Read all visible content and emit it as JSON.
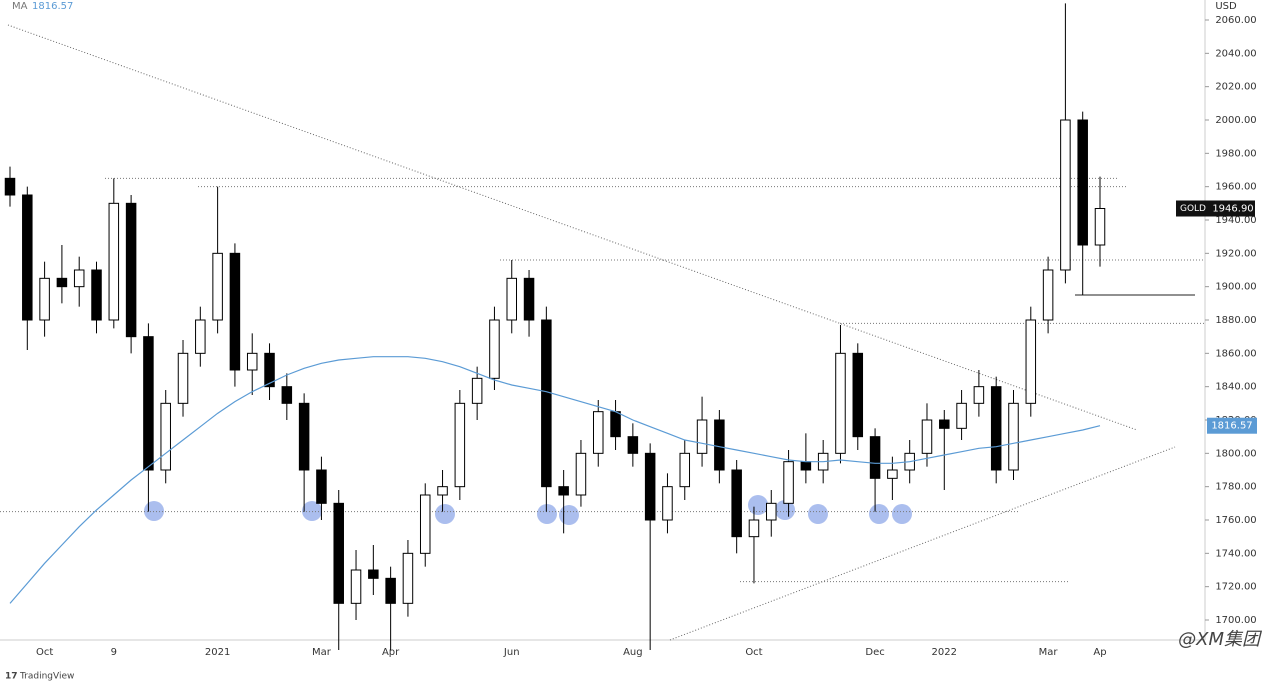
{
  "chart_data": {
    "type": "candlestick",
    "currency": "USD",
    "watermark": "@XM集团",
    "footer": "TradingView",
    "categories": [
      null,
      null,
      "Oct",
      null,
      null,
      null,
      "9",
      null,
      null,
      null,
      null,
      null,
      "2021",
      null,
      null,
      null,
      null,
      null,
      "Mar",
      null,
      null,
      null,
      "Apr",
      null,
      null,
      null,
      null,
      null,
      null,
      "Jun",
      null,
      null,
      null,
      null,
      null,
      null,
      "Aug",
      null,
      null,
      null,
      null,
      null,
      null,
      "Oct",
      null,
      null,
      null,
      null,
      null,
      null,
      "Dec",
      null,
      null,
      null,
      "2022",
      null,
      null,
      null,
      null,
      null,
      "Mar",
      null,
      null,
      "Ap"
    ],
    "series": [
      {
        "name": "GOLD",
        "color": "#000000",
        "up_color": "#ffffff",
        "open": [
          1965,
          1955,
          1880,
          1905,
          1900,
          1910,
          1880,
          1950,
          1870,
          1790,
          1830,
          1860,
          1880,
          1920,
          1850,
          1860,
          1840,
          1830,
          1790,
          1770,
          1710,
          1730,
          1725,
          1710,
          1740,
          1775,
          1780,
          1830,
          1845,
          1880,
          1905,
          1880,
          1780,
          1775,
          1800,
          1825,
          1810,
          1800,
          1760,
          1780,
          1800,
          1820,
          1790,
          1750,
          1760,
          1770,
          1795,
          1790,
          1800,
          1860,
          1810,
          1785,
          1790,
          1800,
          1820,
          1815,
          1830,
          1840,
          1790,
          1830,
          1880,
          1910,
          2000,
          1925
        ],
        "high": [
          1972,
          1960,
          1915,
          1925,
          1918,
          1915,
          1965,
          1955,
          1878,
          1838,
          1868,
          1888,
          1960,
          1926,
          1872,
          1866,
          1848,
          1836,
          1798,
          1778,
          1742,
          1745,
          1732,
          1748,
          1782,
          1790,
          1838,
          1852,
          1888,
          1916,
          1910,
          1888,
          1790,
          1808,
          1832,
          1832,
          1818,
          1806,
          1788,
          1808,
          1834,
          1826,
          1796,
          1768,
          1778,
          1802,
          1812,
          1808,
          1877,
          1866,
          1815,
          1798,
          1808,
          1830,
          1826,
          1838,
          1850,
          1846,
          1838,
          1888,
          1918,
          2070,
          2005,
          1966
        ],
        "low": [
          1948,
          1862,
          1870,
          1890,
          1888,
          1872,
          1875,
          1860,
          1765,
          1782,
          1822,
          1852,
          1872,
          1840,
          1835,
          1832,
          1820,
          1765,
          1760,
          1682,
          1700,
          1715,
          1682,
          1702,
          1732,
          1765,
          1772,
          1820,
          1838,
          1872,
          1870,
          1765,
          1752,
          1768,
          1792,
          1802,
          1792,
          1682,
          1752,
          1772,
          1792,
          1782,
          1740,
          1722,
          1750,
          1762,
          1782,
          1782,
          1794,
          1802,
          1765,
          1772,
          1782,
          1792,
          1778,
          1808,
          1822,
          1782,
          1784,
          1822,
          1872,
          1902,
          1895,
          1912
        ],
        "close": [
          1955,
          1880,
          1905,
          1900,
          1910,
          1880,
          1950,
          1870,
          1790,
          1830,
          1860,
          1880,
          1920,
          1850,
          1860,
          1840,
          1830,
          1790,
          1770,
          1710,
          1730,
          1725,
          1710,
          1740,
          1775,
          1780,
          1830,
          1845,
          1880,
          1905,
          1880,
          1780,
          1775,
          1800,
          1825,
          1810,
          1800,
          1760,
          1780,
          1800,
          1820,
          1790,
          1750,
          1760,
          1770,
          1795,
          1790,
          1800,
          1860,
          1810,
          1785,
          1790,
          1800,
          1820,
          1815,
          1830,
          1840,
          1790,
          1830,
          1880,
          1910,
          2000,
          1925,
          1946.9
        ],
        "last_value_label": "1946.90"
      },
      {
        "name": "MA",
        "color": "#5b9bd5",
        "values": [
          1710,
          1722,
          1734,
          1745,
          1756,
          1766,
          1775,
          1784,
          1792,
          1800,
          1808,
          1816,
          1824,
          1831,
          1837,
          1842,
          1847,
          1851,
          1854,
          1856,
          1857,
          1858,
          1858,
          1858,
          1857,
          1855,
          1852,
          1848,
          1844,
          1841,
          1839,
          1837,
          1834,
          1831,
          1828,
          1825,
          1820,
          1816,
          1812,
          1808,
          1806,
          1804,
          1802,
          1800,
          1798,
          1796,
          1795,
          1795,
          1796,
          1795,
          1794,
          1794,
          1795,
          1797,
          1799,
          1801,
          1803,
          1804,
          1806,
          1808,
          1810,
          1812,
          1814,
          1816.57
        ]
      }
    ],
    "levels": [
      1965,
      1960,
      1916,
      1878,
      1765,
      1723,
      1895
    ],
    "ylim": [
      1688,
      2072
    ],
    "yticks": [
      {
        "value": 1700,
        "label": "1700.00"
      },
      {
        "value": 1720,
        "label": "1720.00"
      },
      {
        "value": 1740,
        "label": "1740.00"
      },
      {
        "value": 1760,
        "label": "1760.00"
      },
      {
        "value": 1780,
        "label": "1780.00"
      },
      {
        "value": 1800,
        "label": "1800.00"
      },
      {
        "value": 1820,
        "label": "1820.00"
      },
      {
        "value": 1840,
        "label": "1840.00"
      },
      {
        "value": 1860,
        "label": "1860.00"
      },
      {
        "value": 1880,
        "label": "1880.00"
      },
      {
        "value": 1900,
        "label": "1900.00"
      },
      {
        "value": 1920,
        "label": "1920.00"
      },
      {
        "value": 1940,
        "label": "1940.00"
      },
      {
        "value": 1960,
        "label": "1960.00"
      },
      {
        "value": 1980,
        "label": "1980.00"
      },
      {
        "value": 2000,
        "label": "2000.00"
      },
      {
        "value": 2020,
        "label": "2020.00"
      },
      {
        "value": 2040,
        "label": "2040.00"
      },
      {
        "value": 2060,
        "label": "2060.00"
      }
    ],
    "grid": false
  }
}
